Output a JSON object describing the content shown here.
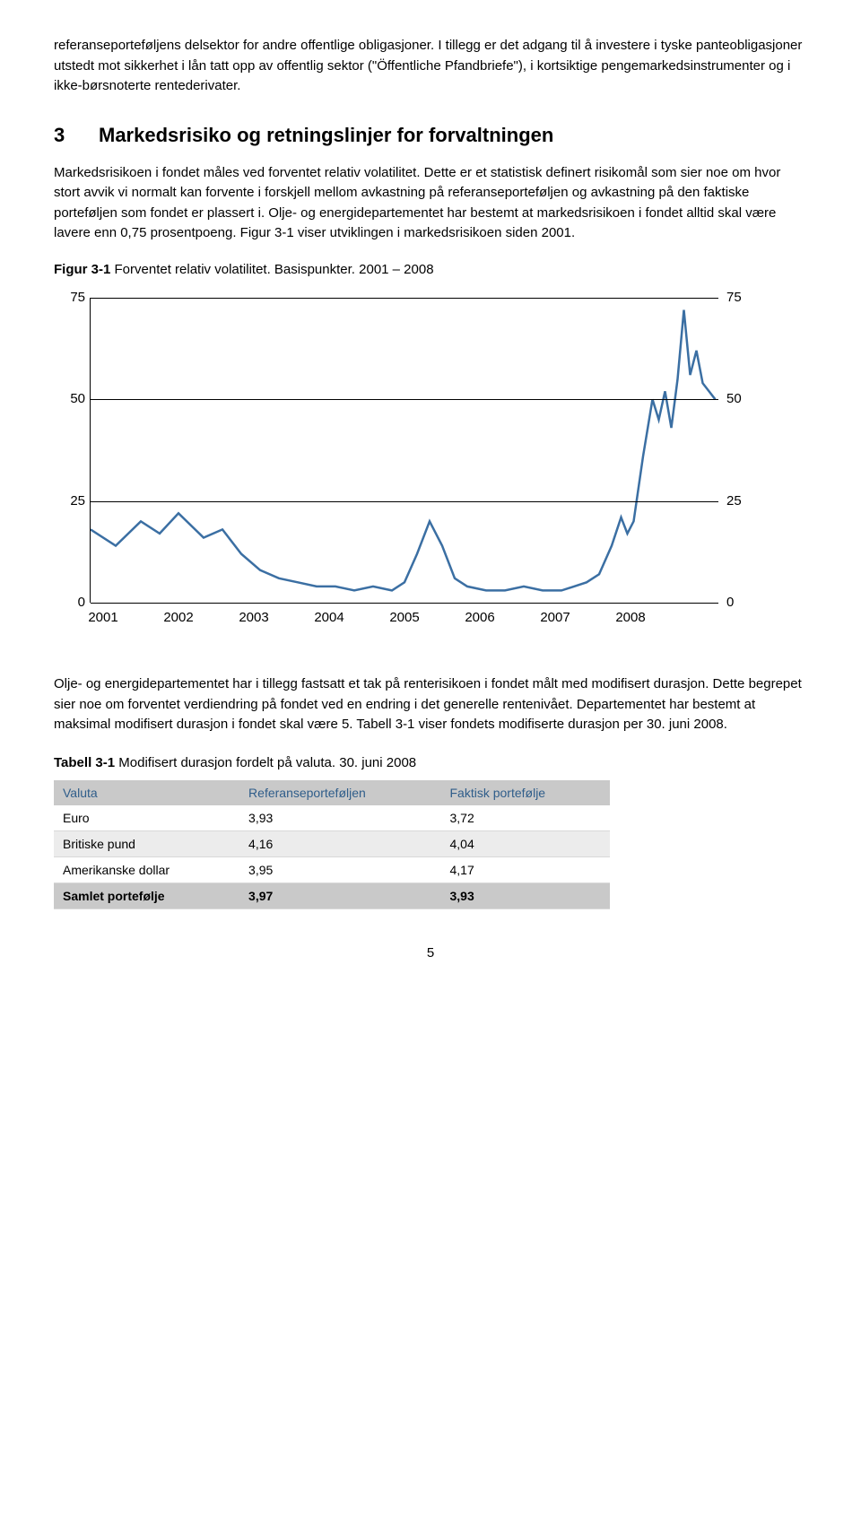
{
  "para1": "referanseporteføljens delsektor for andre offentlige obligasjoner. I tillegg er det adgang til å investere i tyske panteobligasjoner utstedt mot sikkerhet i lån tatt opp av offentlig sektor (\"Öffentliche Pfandbriefe\"), i kortsiktige pengemarkedsinstrumenter og i ikke-børsnoterte rentederivater.",
  "section_num": "3",
  "section_title": "Markedsrisiko og retningslinjer for forvaltningen",
  "para2": "Markedsrisikoen i fondet måles ved forventet relativ volatilitet. Dette er et statistisk definert risikomål som sier noe om hvor stort avvik vi normalt kan forvente i forskjell mellom avkastning på referanseporteføljen og avkastning på den faktiske porteføljen som fondet er plassert i. Olje- og energidepartementet har bestemt at markedsrisikoen i fondet alltid skal være lavere enn 0,75 prosentpoeng. Figur 3-1 viser utviklingen i markedsrisikoen siden 2001.",
  "fig_label": "Figur 3-1",
  "fig_caption": " Forventet relativ volatilitet. Basispunkter. 2001 – 2008",
  "chart": {
    "ylim": [
      0,
      75
    ],
    "yticks": [
      0,
      25,
      50,
      75
    ],
    "xlabels": [
      "2001",
      "2002",
      "2003",
      "2004",
      "2005",
      "2006",
      "2007",
      "2008"
    ],
    "line_color": "#3b6fa3",
    "line_width": 2.5,
    "series": [
      [
        0.0,
        18
      ],
      [
        0.04,
        14
      ],
      [
        0.08,
        20
      ],
      [
        0.11,
        17
      ],
      [
        0.14,
        22
      ],
      [
        0.18,
        16
      ],
      [
        0.21,
        18
      ],
      [
        0.24,
        12
      ],
      [
        0.27,
        8
      ],
      [
        0.3,
        6
      ],
      [
        0.33,
        5
      ],
      [
        0.36,
        4
      ],
      [
        0.39,
        4
      ],
      [
        0.42,
        3
      ],
      [
        0.45,
        4
      ],
      [
        0.48,
        3
      ],
      [
        0.5,
        5
      ],
      [
        0.52,
        12
      ],
      [
        0.54,
        20
      ],
      [
        0.56,
        14
      ],
      [
        0.58,
        6
      ],
      [
        0.6,
        4
      ],
      [
        0.63,
        3
      ],
      [
        0.66,
        3
      ],
      [
        0.69,
        4
      ],
      [
        0.72,
        3
      ],
      [
        0.75,
        3
      ],
      [
        0.77,
        4
      ],
      [
        0.79,
        5
      ],
      [
        0.81,
        7
      ],
      [
        0.83,
        14
      ],
      [
        0.845,
        21
      ],
      [
        0.855,
        17
      ],
      [
        0.865,
        20
      ],
      [
        0.88,
        36
      ],
      [
        0.895,
        50
      ],
      [
        0.905,
        45
      ],
      [
        0.915,
        52
      ],
      [
        0.925,
        43
      ],
      [
        0.935,
        55
      ],
      [
        0.945,
        72
      ],
      [
        0.955,
        56
      ],
      [
        0.965,
        62
      ],
      [
        0.975,
        54
      ],
      [
        0.985,
        52
      ],
      [
        0.995,
        50
      ]
    ]
  },
  "para3": "Olje- og energidepartementet har i tillegg fastsatt et tak på renterisikoen i fondet målt med modifisert durasjon. Dette begrepet sier noe om forventet verdiendring på fondet ved en endring i det generelle rentenivået. Departementet har bestemt at maksimal modifisert durasjon i fondet skal være 5. Tabell 3-1 viser fondets modifiserte durasjon per 30. juni 2008.",
  "table_label": "Tabell 3-1",
  "table_caption": " Modifisert durasjon fordelt på valuta. 30. juni 2008",
  "table": {
    "headers": [
      "Valuta",
      "Referanseporteføljen",
      "Faktisk portefølje"
    ],
    "rows": [
      [
        "Euro",
        "3,93",
        "3,72"
      ],
      [
        "Britiske pund",
        "4,16",
        "4,04"
      ],
      [
        "Amerikanske dollar",
        "3,95",
        "4,17"
      ]
    ],
    "total": [
      "Samlet portefølje",
      "3,97",
      "3,93"
    ]
  },
  "page_number": "5"
}
